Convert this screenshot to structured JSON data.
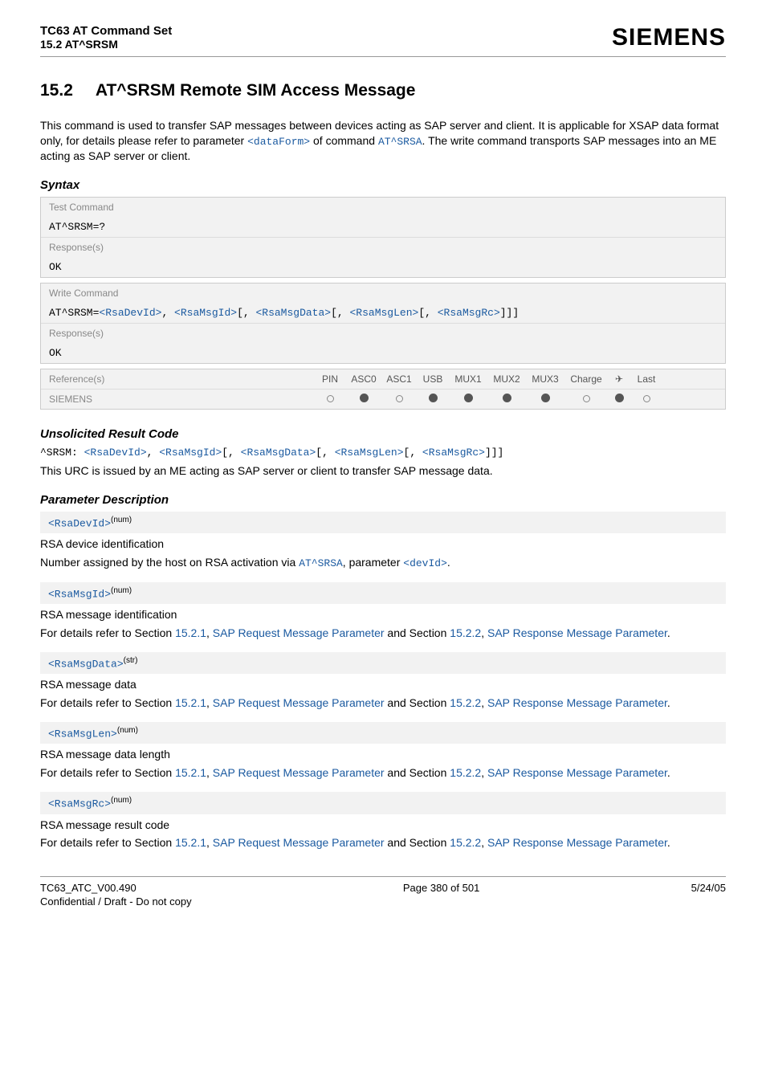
{
  "header": {
    "title": "TC63 AT Command Set",
    "subtitle": "15.2 AT^SRSM",
    "brand": "SIEMENS"
  },
  "section": {
    "number": "15.2",
    "title": "AT^SRSM   Remote SIM Access Message"
  },
  "intro": {
    "line1": "This command is used to transfer SAP messages between devices acting as SAP server and client. It is applicable for XSAP data format only, for details please refer to parameter ",
    "param1": "<dataForm>",
    "mid": "   of command ",
    "cmd": "AT^SRSA",
    "end": ". The write command transports SAP messages into an ME acting as SAP server or client."
  },
  "syntax": {
    "heading": "Syntax",
    "test_command_label": "Test Command",
    "test_command": "AT^SRSM=?",
    "response_label": "Response(s)",
    "ok": "OK",
    "write_command_label": "Write Command",
    "write_prefix": "AT^SRSM=",
    "p1": "<RsaDevId>",
    "p2": "<RsaMsgId>",
    "p3": "<RsaMsgData>",
    "p4": "<RsaMsgLen>",
    "p5": "<RsaMsgRc>",
    "ref_label": "Reference(s)",
    "cols": {
      "pin": "PIN",
      "asc0": "ASC0",
      "asc1": "ASC1",
      "usb": "USB",
      "mux1": "MUX1",
      "mux2": "MUX2",
      "mux3": "MUX3",
      "charge": "Charge",
      "last": "Last"
    },
    "vendor": "SIEMENS",
    "dots": [
      "empty",
      "filled",
      "empty",
      "filled",
      "filled",
      "filled",
      "filled",
      "empty",
      "filled",
      "empty"
    ]
  },
  "urc": {
    "heading": "Unsolicited Result Code",
    "prefix": "^SRSM: ",
    "p1": "<RsaDevId>",
    "p2": "<RsaMsgId>",
    "p3": "<RsaMsgData>",
    "p4": "<RsaMsgLen>",
    "p5": "<RsaMsgRc>",
    "desc": "This URC is issued by an ME acting as SAP server or client to transfer SAP message data."
  },
  "pd_heading": "Parameter Description",
  "params": [
    {
      "name": "<RsaDevId>",
      "sup": "(num)",
      "title": "RSA device identification",
      "body_pre": "Number assigned by the host on RSA activation via ",
      "link1": "AT^SRSA",
      "body_mid": ", parameter ",
      "link2": "<devId>",
      "body_post": "."
    },
    {
      "name": "<RsaMsgId>",
      "sup": "(num)",
      "title": "RSA message identification",
      "body_pre": "For details refer to Section ",
      "l1": "15.2.1",
      "c1": ", ",
      "l2": "SAP Request Message Parameter",
      "c2": " and Section ",
      "l3": "15.2.2",
      "c3": ", ",
      "l4": "SAP Response Message Parameter",
      "body_post": "."
    },
    {
      "name": "<RsaMsgData>",
      "sup": "(str)",
      "title": "RSA message data",
      "body_pre": "For details refer to Section ",
      "l1": "15.2.1",
      "c1": ", ",
      "l2": "SAP Request Message Parameter",
      "c2": " and Section ",
      "l3": "15.2.2",
      "c3": ", ",
      "l4": "SAP Response Message Parameter",
      "body_post": "."
    },
    {
      "name": "<RsaMsgLen>",
      "sup": "(num)",
      "title": "RSA message data length",
      "body_pre": "For details refer to Section ",
      "l1": "15.2.1",
      "c1": ", ",
      "l2": "SAP Request Message Parameter",
      "c2": " and Section ",
      "l3": "15.2.2",
      "c3": ", ",
      "l4": "SAP Response Message Parameter",
      "body_post": "."
    },
    {
      "name": "<RsaMsgRc>",
      "sup": "(num)",
      "title": "RSA message result code",
      "body_pre": "For details refer to Section ",
      "l1": "15.2.1",
      "c1": ", ",
      "l2": "SAP Request Message Parameter",
      "c2": " and Section ",
      "l3": "15.2.2",
      "c3": ", ",
      "l4": "SAP Response Message Parameter",
      "body_post": "."
    }
  ],
  "footer": {
    "doc": "TC63_ATC_V00.490",
    "conf": "Confidential / Draft - Do not copy",
    "page": "Page 380 of 501",
    "date": "5/24/05"
  }
}
